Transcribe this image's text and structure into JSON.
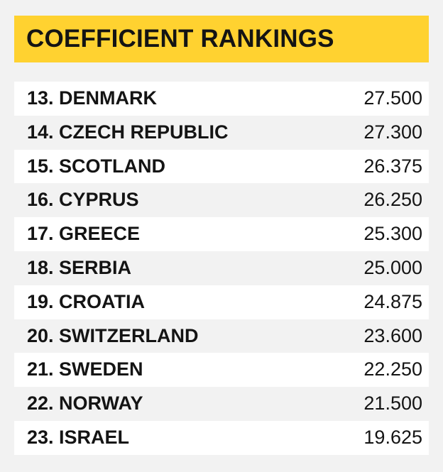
{
  "header": {
    "title": "COEFFICIENT RANKINGS"
  },
  "colors": {
    "title_background": "#ffd230",
    "page_background": "#f2f2f2",
    "row_background_light": "#ffffff",
    "text": "#141414"
  },
  "rankings": [
    {
      "label": "13. DENMARK",
      "score": "27.500"
    },
    {
      "label": "14. CZECH REPUBLIC",
      "score": "27.300"
    },
    {
      "label": "15. SCOTLAND",
      "score": "26.375"
    },
    {
      "label": "16. CYPRUS",
      "score": "26.250"
    },
    {
      "label": "17. GREECE",
      "score": "25.300"
    },
    {
      "label": "18. SERBIA",
      "score": "25.000"
    },
    {
      "label": "19. CROATIA",
      "score": "24.875"
    },
    {
      "label": "20. SWITZERLAND",
      "score": "23.600"
    },
    {
      "label": "21. SWEDEN",
      "score": "22.250"
    },
    {
      "label": "22. NORWAY",
      "score": "21.500"
    },
    {
      "label": "23. ISRAEL",
      "score": "19.625"
    }
  ]
}
